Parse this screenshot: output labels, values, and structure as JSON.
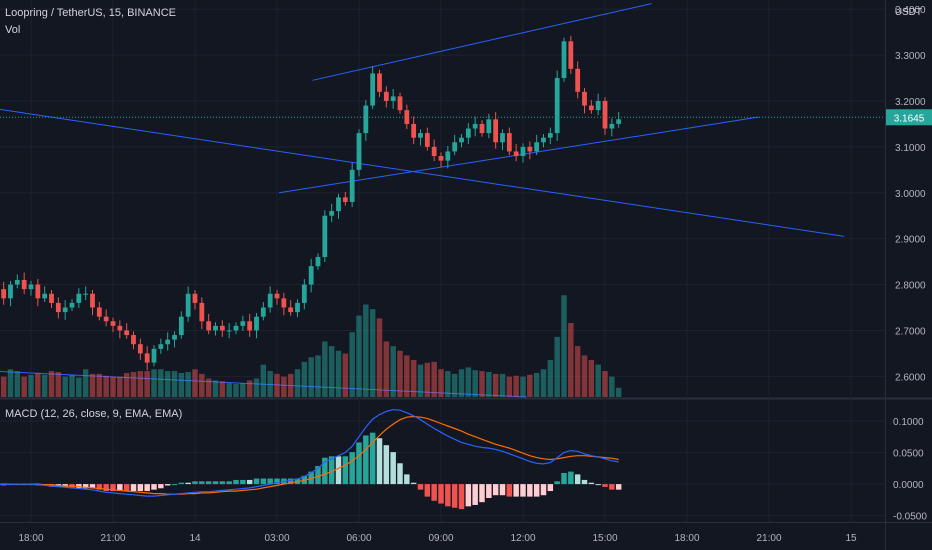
{
  "header": {
    "symbol": "Loopring / TetherUS, 15, BINANCE",
    "vol_label": "Vol",
    "currency": "USDT"
  },
  "macd_legend": "MACD (12, 26, close, 9, EMA, EMA)",
  "colors": {
    "up": "#26a69a",
    "down": "#ef5350",
    "trendline": "#2962ff",
    "macd": "#2962ff",
    "signal": "#ff6d00",
    "price_line": "#26a69a"
  },
  "chart_data": [
    {
      "type": "candlestick",
      "title": "",
      "y_ticks": [
        "3.4000",
        "3.3000",
        "3.2000",
        "3.1000",
        "3.0000",
        "2.9000",
        "2.8000",
        "2.7000",
        "2.6000"
      ],
      "last_price_label": "3.1645",
      "x_ticks": [
        "18:00",
        "21:00",
        "14",
        "03:00",
        "06:00",
        "09:00",
        "12:00",
        "15:00",
        "18:00",
        "21:00",
        "15"
      ],
      "ylim": [
        2.555,
        3.42
      ],
      "closes": [
        2.78,
        2.79,
        2.77,
        2.8,
        2.81,
        2.79,
        2.8,
        2.77,
        2.78,
        2.76,
        2.74,
        2.75,
        2.76,
        2.78,
        2.78,
        2.75,
        2.73,
        2.72,
        2.71,
        2.7,
        2.69,
        2.67,
        2.65,
        2.63,
        2.66,
        2.67,
        2.68,
        2.69,
        2.73,
        2.78,
        2.76,
        2.72,
        2.7,
        2.71,
        2.7,
        2.7,
        2.71,
        2.72,
        2.7,
        2.73,
        2.75,
        2.78,
        2.77,
        2.75,
        2.74,
        2.76,
        2.8,
        2.84,
        2.86,
        2.95,
        2.96,
        2.99,
        2.98,
        3.05,
        3.13,
        3.19,
        3.26,
        3.22,
        3.2,
        3.21,
        3.18,
        3.15,
        3.12,
        3.13,
        3.1,
        3.08,
        3.07,
        3.09,
        3.11,
        3.12,
        3.14,
        3.15,
        3.13,
        3.16,
        3.11,
        3.13,
        3.09,
        3.08,
        3.1,
        3.09,
        3.11,
        3.12,
        3.13,
        3.25,
        3.33,
        3.27,
        3.22,
        3.19,
        3.18,
        3.2,
        3.14,
        3.15,
        3.16
      ],
      "volume_scale": [
        0,
        200
      ],
      "volumes": [
        20,
        25,
        22,
        30,
        28,
        22,
        24,
        26,
        24,
        28,
        27,
        22,
        24,
        21,
        30,
        25,
        25,
        23,
        22,
        22,
        26,
        27,
        28,
        28,
        30,
        30,
        28,
        28,
        26,
        27,
        30,
        25,
        20,
        18,
        17,
        15,
        14,
        15,
        18,
        20,
        35,
        28,
        25,
        22,
        25,
        30,
        38,
        43,
        45,
        60,
        55,
        50,
        47,
        70,
        88,
        100,
        95,
        85,
        60,
        55,
        50,
        45,
        40,
        35,
        37,
        38,
        30,
        28,
        25,
        30,
        32,
        29,
        28,
        27,
        25,
        25,
        22,
        23,
        22,
        24,
        26,
        30,
        40,
        65,
        110,
        80,
        55,
        45,
        40,
        35,
        28,
        22,
        10
      ]
    },
    {
      "type": "macd",
      "y_ticks": [
        "0.1000",
        "0.0500",
        "0.0000",
        "-0.0500"
      ],
      "ylim": [
        -0.06,
        0.13
      ],
      "macd": [
        0,
        0,
        -0.001,
        0,
        0,
        0,
        0,
        -0.001,
        -0.002,
        -0.003,
        -0.004,
        -0.005,
        -0.006,
        -0.007,
        -0.008,
        -0.009,
        -0.011,
        -0.013,
        -0.014,
        -0.015,
        -0.016,
        -0.017,
        -0.018,
        -0.019,
        -0.019,
        -0.018,
        -0.017,
        -0.016,
        -0.015,
        -0.014,
        -0.013,
        -0.012,
        -0.012,
        -0.011,
        -0.01,
        -0.009,
        -0.008,
        -0.007,
        -0.006,
        -0.004,
        -0.002,
        0,
        0.002,
        0.004,
        0.006,
        0.008,
        0.012,
        0.018,
        0.025,
        0.035,
        0.04,
        0.045,
        0.05,
        0.06,
        0.075,
        0.09,
        0.103,
        0.11,
        0.115,
        0.118,
        0.117,
        0.113,
        0.108,
        0.102,
        0.095,
        0.088,
        0.082,
        0.076,
        0.071,
        0.066,
        0.063,
        0.06,
        0.058,
        0.057,
        0.055,
        0.052,
        0.048,
        0.044,
        0.04,
        0.036,
        0.033,
        0.032,
        0.034,
        0.042,
        0.05,
        0.053,
        0.052,
        0.048,
        0.045,
        0.043,
        0.04,
        0.037,
        0.035
      ],
      "signal": [
        0,
        0,
        0,
        0,
        0,
        0,
        0,
        0,
        -0.001,
        -0.001,
        -0.002,
        -0.003,
        -0.003,
        -0.004,
        -0.005,
        -0.006,
        -0.007,
        -0.008,
        -0.009,
        -0.01,
        -0.011,
        -0.012,
        -0.013,
        -0.014,
        -0.015,
        -0.015,
        -0.016,
        -0.016,
        -0.016,
        -0.015,
        -0.015,
        -0.014,
        -0.014,
        -0.013,
        -0.012,
        -0.011,
        -0.011,
        -0.01,
        -0.009,
        -0.008,
        -0.006,
        -0.004,
        -0.002,
        0,
        0.002,
        0.004,
        0.006,
        0.009,
        0.012,
        0.016,
        0.02,
        0.025,
        0.03,
        0.037,
        0.045,
        0.055,
        0.066,
        0.077,
        0.087,
        0.095,
        0.102,
        0.106,
        0.107,
        0.106,
        0.104,
        0.1,
        0.096,
        0.092,
        0.088,
        0.084,
        0.079,
        0.075,
        0.071,
        0.067,
        0.063,
        0.06,
        0.057,
        0.053,
        0.049,
        0.045,
        0.042,
        0.04,
        0.039,
        0.04,
        0.042,
        0.044,
        0.045,
        0.045,
        0.044,
        0.043,
        0.042,
        0.041,
        0.039
      ]
    }
  ]
}
